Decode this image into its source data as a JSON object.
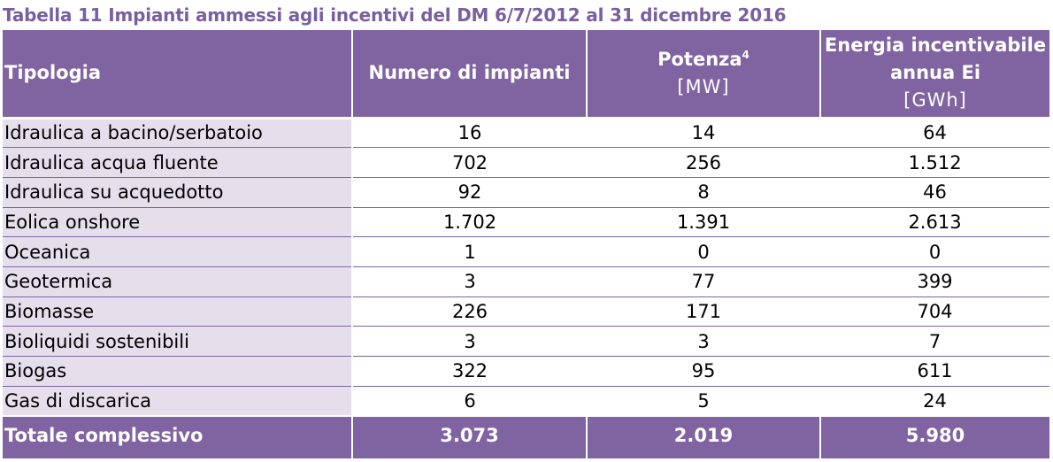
{
  "caption": "Tabella 11 Impianti ammessi agli incentivi del DM 6/7/2012 al 31 dicembre 2016",
  "header": {
    "tipologia": "Tipologia",
    "numero": "Numero di impianti",
    "potenza": "Potenza",
    "potenza_footnote": "4",
    "potenza_unit": "[MW]",
    "energia_line1": "Energia incentivabile",
    "energia_line2": "annua Ei",
    "energia_unit": "[GWh]"
  },
  "rows": [
    {
      "tipologia": "Idraulica a bacino/serbatoio",
      "numero": "16",
      "potenza": "14",
      "energia": "64"
    },
    {
      "tipologia": "Idraulica acqua fluente",
      "numero": "702",
      "potenza": "256",
      "energia": "1.512"
    },
    {
      "tipologia": "Idraulica su acquedotto",
      "numero": "92",
      "potenza": "8",
      "energia": "46"
    },
    {
      "tipologia": "Eolica onshore",
      "numero": "1.702",
      "potenza": "1.391",
      "energia": "2.613"
    },
    {
      "tipologia": "Oceanica",
      "numero": "1",
      "potenza": "0",
      "energia": "0"
    },
    {
      "tipologia": "Geotermica",
      "numero": "3",
      "potenza": "77",
      "energia": "399"
    },
    {
      "tipologia": "Biomasse",
      "numero": "226",
      "potenza": "171",
      "energia": "704"
    },
    {
      "tipologia": "Bioliquidi sostenibili",
      "numero": "3",
      "potenza": "3",
      "energia": "7"
    },
    {
      "tipologia": "Biogas",
      "numero": "322",
      "potenza": "95",
      "energia": "611"
    },
    {
      "tipologia": "Gas di discarica",
      "numero": "6",
      "potenza": "5",
      "energia": "24"
    }
  ],
  "total": {
    "tipologia": "Totale complessivo",
    "numero": "3.073",
    "potenza": "2.019",
    "energia": "5.980"
  },
  "colors": {
    "header_bg": "#8064a2",
    "label_bg": "#e5dfec",
    "caption": "#7a5fa0"
  }
}
